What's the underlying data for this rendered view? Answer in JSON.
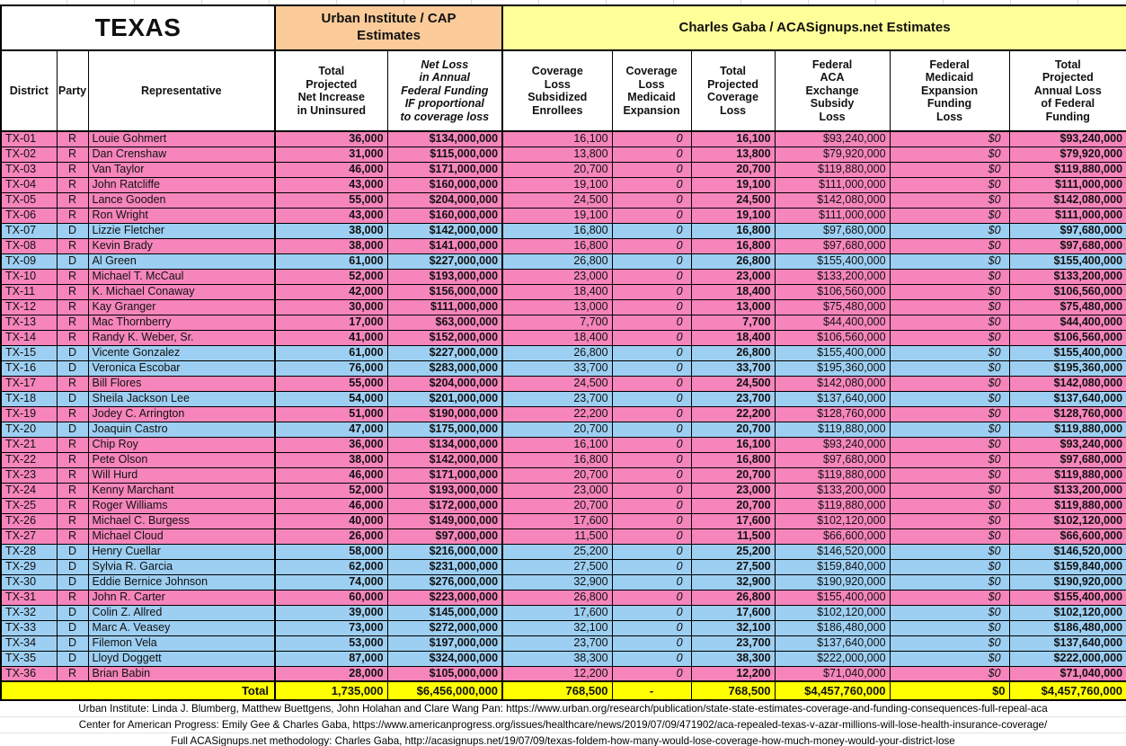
{
  "title": "TEXAS",
  "group_headers": {
    "urban": "Urban Institute / CAP\nEstimates",
    "gaba": "Charles Gaba / ACASignups.net Estimates"
  },
  "colors": {
    "republican_row": "#f685bb",
    "democrat_row": "#9dcff2",
    "urban_header": "#facb99",
    "gaba_header": "#ffff99",
    "total_row": "#ffff00"
  },
  "columns": [
    {
      "id": "district",
      "label": "District",
      "group": "left"
    },
    {
      "id": "party",
      "label": "Party",
      "group": "left"
    },
    {
      "id": "representative",
      "label": "Representative",
      "group": "left"
    },
    {
      "id": "net-increase-uninsured",
      "label": "Total\nProjected\nNet Increase\nin Uninsured",
      "group": "urban",
      "sep": true,
      "value_style": "bold"
    },
    {
      "id": "net-loss-federal-funding",
      "label": "Net Loss\nin Annual\nFederal Funding\nIF proportional\nto coverage loss",
      "group": "urban",
      "em": true,
      "value_style": "bold"
    },
    {
      "id": "coverage-loss-subsidized",
      "label": "Coverage\nLoss\nSubsidized\nEnrollees",
      "group": "gaba",
      "sep": true,
      "value_style": "plain"
    },
    {
      "id": "coverage-loss-medicaid",
      "label": "Coverage\nLoss\nMedicaid\nExpansion",
      "group": "gaba",
      "value_style": "italic"
    },
    {
      "id": "total-coverage-loss",
      "label": "Total\nProjected\nCoverage\nLoss",
      "group": "gaba",
      "value_style": "bold"
    },
    {
      "id": "federal-aca-subsidy-loss",
      "label": "Federal\nACA\nExchange\nSubsidy\nLoss",
      "group": "gaba",
      "value_style": "plain"
    },
    {
      "id": "federal-medicaid-funding-loss",
      "label": "Federal\nMedicaid\nExpansion\nFunding\nLoss",
      "group": "gaba",
      "value_style": "italic"
    },
    {
      "id": "total-federal-funding-loss",
      "label": "Total\nProjected\nAnnual Loss\nof Federal\nFunding",
      "group": "gaba",
      "value_style": "bold"
    }
  ],
  "rows": [
    {
      "district": "TX-01",
      "party": "R",
      "representative": "Louie Gohmert",
      "values": [
        "36,000",
        "$134,000,000",
        "16,100",
        "0",
        "16,100",
        "$93,240,000",
        "$0",
        "$93,240,000"
      ]
    },
    {
      "district": "TX-02",
      "party": "R",
      "representative": "Dan Crenshaw",
      "values": [
        "31,000",
        "$115,000,000",
        "13,800",
        "0",
        "13,800",
        "$79,920,000",
        "$0",
        "$79,920,000"
      ]
    },
    {
      "district": "TX-03",
      "party": "R",
      "representative": "Van Taylor",
      "values": [
        "46,000",
        "$171,000,000",
        "20,700",
        "0",
        "20,700",
        "$119,880,000",
        "$0",
        "$119,880,000"
      ]
    },
    {
      "district": "TX-04",
      "party": "R",
      "representative": "John Ratcliffe",
      "values": [
        "43,000",
        "$160,000,000",
        "19,100",
        "0",
        "19,100",
        "$111,000,000",
        "$0",
        "$111,000,000"
      ]
    },
    {
      "district": "TX-05",
      "party": "R",
      "representative": "Lance Gooden",
      "values": [
        "55,000",
        "$204,000,000",
        "24,500",
        "0",
        "24,500",
        "$142,080,000",
        "$0",
        "$142,080,000"
      ]
    },
    {
      "district": "TX-06",
      "party": "R",
      "representative": "Ron Wright",
      "values": [
        "43,000",
        "$160,000,000",
        "19,100",
        "0",
        "19,100",
        "$111,000,000",
        "$0",
        "$111,000,000"
      ]
    },
    {
      "district": "TX-07",
      "party": "D",
      "representative": "Lizzie Fletcher",
      "values": [
        "38,000",
        "$142,000,000",
        "16,800",
        "0",
        "16,800",
        "$97,680,000",
        "$0",
        "$97,680,000"
      ]
    },
    {
      "district": "TX-08",
      "party": "R",
      "representative": "Kevin Brady",
      "values": [
        "38,000",
        "$141,000,000",
        "16,800",
        "0",
        "16,800",
        "$97,680,000",
        "$0",
        "$97,680,000"
      ]
    },
    {
      "district": "TX-09",
      "party": "D",
      "representative": "Al Green",
      "values": [
        "61,000",
        "$227,000,000",
        "26,800",
        "0",
        "26,800",
        "$155,400,000",
        "$0",
        "$155,400,000"
      ]
    },
    {
      "district": "TX-10",
      "party": "R",
      "representative": "Michael T. McCaul",
      "values": [
        "52,000",
        "$193,000,000",
        "23,000",
        "0",
        "23,000",
        "$133,200,000",
        "$0",
        "$133,200,000"
      ]
    },
    {
      "district": "TX-11",
      "party": "R",
      "representative": "K. Michael Conaway",
      "values": [
        "42,000",
        "$156,000,000",
        "18,400",
        "0",
        "18,400",
        "$106,560,000",
        "$0",
        "$106,560,000"
      ]
    },
    {
      "district": "TX-12",
      "party": "R",
      "representative": "Kay Granger",
      "values": [
        "30,000",
        "$111,000,000",
        "13,000",
        "0",
        "13,000",
        "$75,480,000",
        "$0",
        "$75,480,000"
      ]
    },
    {
      "district": "TX-13",
      "party": "R",
      "representative": "Mac Thornberry",
      "values": [
        "17,000",
        "$63,000,000",
        "7,700",
        "0",
        "7,700",
        "$44,400,000",
        "$0",
        "$44,400,000"
      ]
    },
    {
      "district": "TX-14",
      "party": "R",
      "representative": "Randy K. Weber, Sr.",
      "values": [
        "41,000",
        "$152,000,000",
        "18,400",
        "0",
        "18,400",
        "$106,560,000",
        "$0",
        "$106,560,000"
      ]
    },
    {
      "district": "TX-15",
      "party": "D",
      "representative": "Vicente Gonzalez",
      "values": [
        "61,000",
        "$227,000,000",
        "26,800",
        "0",
        "26,800",
        "$155,400,000",
        "$0",
        "$155,400,000"
      ]
    },
    {
      "district": "TX-16",
      "party": "D",
      "representative": "Veronica Escobar",
      "values": [
        "76,000",
        "$283,000,000",
        "33,700",
        "0",
        "33,700",
        "$195,360,000",
        "$0",
        "$195,360,000"
      ]
    },
    {
      "district": "TX-17",
      "party": "R",
      "representative": "Bill Flores",
      "values": [
        "55,000",
        "$204,000,000",
        "24,500",
        "0",
        "24,500",
        "$142,080,000",
        "$0",
        "$142,080,000"
      ]
    },
    {
      "district": "TX-18",
      "party": "D",
      "representative": "Sheila Jackson Lee",
      "values": [
        "54,000",
        "$201,000,000",
        "23,700",
        "0",
        "23,700",
        "$137,640,000",
        "$0",
        "$137,640,000"
      ]
    },
    {
      "district": "TX-19",
      "party": "R",
      "representative": "Jodey C. Arrington",
      "values": [
        "51,000",
        "$190,000,000",
        "22,200",
        "0",
        "22,200",
        "$128,760,000",
        "$0",
        "$128,760,000"
      ]
    },
    {
      "district": "TX-20",
      "party": "D",
      "representative": "Joaquin Castro",
      "values": [
        "47,000",
        "$175,000,000",
        "20,700",
        "0",
        "20,700",
        "$119,880,000",
        "$0",
        "$119,880,000"
      ]
    },
    {
      "district": "TX-21",
      "party": "R",
      "representative": "Chip Roy",
      "values": [
        "36,000",
        "$134,000,000",
        "16,100",
        "0",
        "16,100",
        "$93,240,000",
        "$0",
        "$93,240,000"
      ]
    },
    {
      "district": "TX-22",
      "party": "R",
      "representative": "Pete Olson",
      "values": [
        "38,000",
        "$142,000,000",
        "16,800",
        "0",
        "16,800",
        "$97,680,000",
        "$0",
        "$97,680,000"
      ]
    },
    {
      "district": "TX-23",
      "party": "R",
      "representative": "Will Hurd",
      "values": [
        "46,000",
        "$171,000,000",
        "20,700",
        "0",
        "20,700",
        "$119,880,000",
        "$0",
        "$119,880,000"
      ]
    },
    {
      "district": "TX-24",
      "party": "R",
      "representative": "Kenny Marchant",
      "values": [
        "52,000",
        "$193,000,000",
        "23,000",
        "0",
        "23,000",
        "$133,200,000",
        "$0",
        "$133,200,000"
      ]
    },
    {
      "district": "TX-25",
      "party": "R",
      "representative": "Roger Williams",
      "values": [
        "46,000",
        "$172,000,000",
        "20,700",
        "0",
        "20,700",
        "$119,880,000",
        "$0",
        "$119,880,000"
      ]
    },
    {
      "district": "TX-26",
      "party": "R",
      "representative": "Michael C. Burgess",
      "values": [
        "40,000",
        "$149,000,000",
        "17,600",
        "0",
        "17,600",
        "$102,120,000",
        "$0",
        "$102,120,000"
      ]
    },
    {
      "district": "TX-27",
      "party": "R",
      "representative": "Michael Cloud",
      "values": [
        "26,000",
        "$97,000,000",
        "11,500",
        "0",
        "11,500",
        "$66,600,000",
        "$0",
        "$66,600,000"
      ]
    },
    {
      "district": "TX-28",
      "party": "D",
      "representative": "Henry Cuellar",
      "values": [
        "58,000",
        "$216,000,000",
        "25,200",
        "0",
        "25,200",
        "$146,520,000",
        "$0",
        "$146,520,000"
      ]
    },
    {
      "district": "TX-29",
      "party": "D",
      "representative": "Sylvia R. Garcia",
      "values": [
        "62,000",
        "$231,000,000",
        "27,500",
        "0",
        "27,500",
        "$159,840,000",
        "$0",
        "$159,840,000"
      ]
    },
    {
      "district": "TX-30",
      "party": "D",
      "representative": "Eddie Bernice Johnson",
      "values": [
        "74,000",
        "$276,000,000",
        "32,900",
        "0",
        "32,900",
        "$190,920,000",
        "$0",
        "$190,920,000"
      ]
    },
    {
      "district": "TX-31",
      "party": "R",
      "representative": "John R. Carter",
      "values": [
        "60,000",
        "$223,000,000",
        "26,800",
        "0",
        "26,800",
        "$155,400,000",
        "$0",
        "$155,400,000"
      ]
    },
    {
      "district": "TX-32",
      "party": "D",
      "representative": "Colin Z. Allred",
      "values": [
        "39,000",
        "$145,000,000",
        "17,600",
        "0",
        "17,600",
        "$102,120,000",
        "$0",
        "$102,120,000"
      ]
    },
    {
      "district": "TX-33",
      "party": "D",
      "representative": "Marc A. Veasey",
      "values": [
        "73,000",
        "$272,000,000",
        "32,100",
        "0",
        "32,100",
        "$186,480,000",
        "$0",
        "$186,480,000"
      ]
    },
    {
      "district": "TX-34",
      "party": "D",
      "representative": "Filemon Vela",
      "values": [
        "53,000",
        "$197,000,000",
        "23,700",
        "0",
        "23,700",
        "$137,640,000",
        "$0",
        "$137,640,000"
      ]
    },
    {
      "district": "TX-35",
      "party": "D",
      "representative": "Lloyd Doggett",
      "values": [
        "87,000",
        "$324,000,000",
        "38,300",
        "0",
        "38,300",
        "$222,000,000",
        "$0",
        "$222,000,000"
      ]
    },
    {
      "district": "TX-36",
      "party": "R",
      "representative": "Brian Babin",
      "values": [
        "28,000",
        "$105,000,000",
        "12,200",
        "0",
        "12,200",
        "$71,040,000",
        "$0",
        "$71,040,000"
      ]
    }
  ],
  "total_row": {
    "label": "Total",
    "values": [
      "1,735,000",
      "$6,456,000,000",
      "768,500",
      "-",
      "768,500",
      "$4,457,760,000",
      "$0",
      "$4,457,760,000"
    ]
  },
  "footnotes": [
    "Urban Institute: Linda J. Blumberg, Matthew Buettgens, John Holahan and Clare Wang Pan: https://www.urban.org/research/publication/state-state-estimates-coverage-and-funding-consequences-full-repeal-aca",
    "Center for American Progress: Emily Gee & Charles Gaba, https://www.americanprogress.org/issues/healthcare/news/2019/07/09/471902/aca-repealed-texas-v-azar-millions-will-lose-health-insurance-coverage/",
    "Full ACASignups.net methodology: Charles Gaba, http://acasignups.net/19/07/09/texas-foldem-how-many-would-lose-coverage-how-much-money-would-your-district-lose"
  ]
}
